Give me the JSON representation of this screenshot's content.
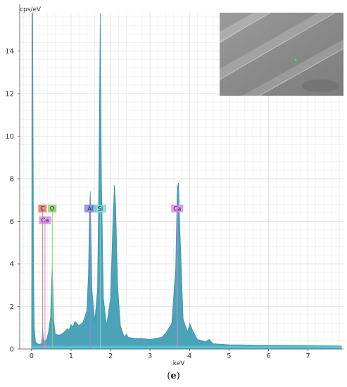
{
  "panel_label": {
    "open": "(",
    "letter": "e",
    "close": ")"
  },
  "inset": {
    "scale_text": ""
  },
  "chart_data": {
    "type": "line",
    "title": "",
    "xlabel": "keV",
    "ylabel": "cps/eV",
    "xlim": [
      -0.3,
      7.9
    ],
    "ylim": [
      0,
      15.8
    ],
    "x_ticks": [
      0,
      1,
      2,
      3,
      4,
      5,
      6,
      7
    ],
    "y_ticks": [
      0,
      2,
      4,
      6,
      8,
      10,
      12,
      14
    ],
    "grid": true,
    "series": [
      {
        "fill": "#4aa3b8",
        "x": [
          0.0,
          0.01,
          0.02,
          0.03,
          0.05,
          0.07,
          0.1,
          0.15,
          0.2,
          0.25,
          0.27,
          0.28,
          0.3,
          0.33,
          0.38,
          0.43,
          0.48,
          0.51,
          0.525,
          0.54,
          0.56,
          0.6,
          0.7,
          0.8,
          0.9,
          0.95,
          1.0,
          1.05,
          1.1,
          1.2,
          1.3,
          1.4,
          1.44,
          1.47,
          1.487,
          1.5,
          1.53,
          1.6,
          1.67,
          1.71,
          1.739,
          1.77,
          1.82,
          1.9,
          2.0,
          2.07,
          2.1,
          2.13,
          2.18,
          2.25,
          2.35,
          2.4,
          2.45,
          2.6,
          2.8,
          3.0,
          3.3,
          3.4,
          3.55,
          3.65,
          3.69,
          3.72,
          3.76,
          3.84,
          3.95,
          4.01,
          4.07,
          4.2,
          4.4,
          4.5,
          4.6,
          5.0,
          6.0,
          7.0,
          7.85
        ],
        "y": [
          0.0,
          8.0,
          15.8,
          15.8,
          4.0,
          1.0,
          0.35,
          0.25,
          0.22,
          0.25,
          0.55,
          1.0,
          0.45,
          0.35,
          0.45,
          0.8,
          1.5,
          3.3,
          3.9,
          3.0,
          1.4,
          0.7,
          0.65,
          0.75,
          0.95,
          0.9,
          1.15,
          1.05,
          1.3,
          1.1,
          1.25,
          1.8,
          3.5,
          6.6,
          7.4,
          6.0,
          2.8,
          1.3,
          2.8,
          9.0,
          15.8,
          8.0,
          2.4,
          1.1,
          2.4,
          6.5,
          7.7,
          6.8,
          3.0,
          1.1,
          0.55,
          0.7,
          0.55,
          0.5,
          0.5,
          0.45,
          0.55,
          0.75,
          1.2,
          3.8,
          7.6,
          7.8,
          5.5,
          1.4,
          0.8,
          1.2,
          0.9,
          0.45,
          0.35,
          0.45,
          0.25,
          0.2,
          0.18,
          0.17,
          0.15
        ]
      }
    ],
    "element_labels": [
      {
        "name": "C",
        "energy": 0.277,
        "y": 6.6,
        "color": "#e07a6a"
      },
      {
        "name": "O",
        "energy": 0.525,
        "y": 6.6,
        "color": "#8ad06a"
      },
      {
        "name": "Ca",
        "energy": 0.341,
        "y": 6.05,
        "color": "#d88be6"
      },
      {
        "name": "Al",
        "energy": 1.487,
        "y": 6.6,
        "color": "#8a8ae8"
      },
      {
        "name": "Si",
        "energy": 1.739,
        "y": 6.6,
        "color": "#7ad6d6"
      },
      {
        "name": "Ca",
        "energy": 3.691,
        "y": 6.6,
        "color": "#d88be6"
      }
    ]
  }
}
